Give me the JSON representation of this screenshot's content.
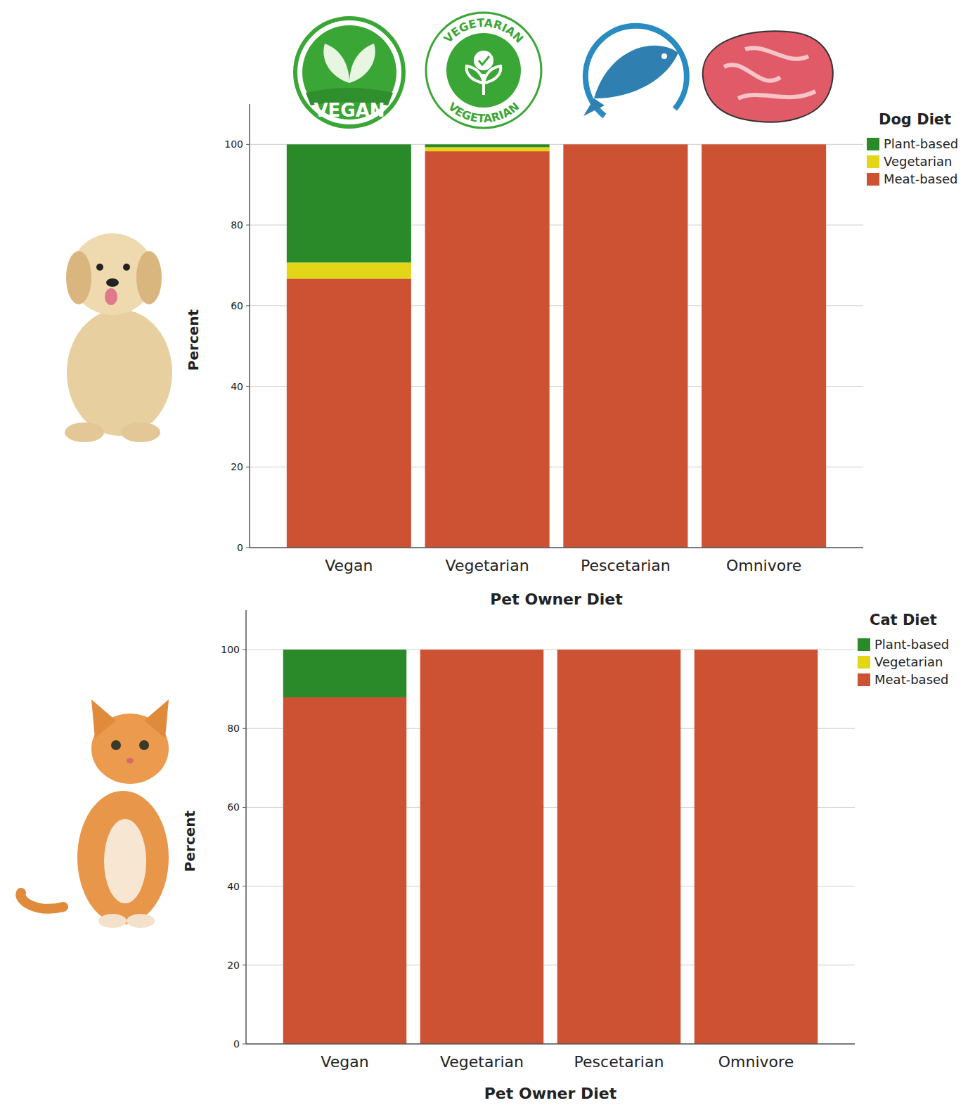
{
  "chart_data": [
    {
      "type": "bar",
      "stacked": true,
      "grid": true,
      "legend": "right",
      "legend_title": "Dog Diet",
      "x_label": "Pet Owner Diet",
      "y_label": "Percent",
      "categories": [
        "Vegan",
        "Vegetarian",
        "Pescetarian",
        "Omnivore"
      ],
      "series": [
        {
          "name": "Plant-based",
          "color": "#2a8a2a",
          "values": [
            29.3,
            0.7,
            0,
            0
          ]
        },
        {
          "name": "Vegetarian",
          "color": "#e3d617",
          "values": [
            4.0,
            1.0,
            0,
            0
          ]
        },
        {
          "name": "Meat-based",
          "color": "#cc5233",
          "values": [
            66.7,
            98.3,
            100,
            100
          ]
        }
      ],
      "ylim": [
        0,
        110
      ],
      "yticks": [
        0,
        20,
        40,
        60,
        80,
        100
      ]
    },
    {
      "type": "bar",
      "stacked": true,
      "grid": true,
      "legend": "right",
      "legend_title": "Cat Diet",
      "x_label": "Pet Owner Diet",
      "y_label": "Percent",
      "categories": [
        "Vegan",
        "Vegetarian",
        "Pescetarian",
        "Omnivore"
      ],
      "series": [
        {
          "name": "Plant-based",
          "color": "#2a8a2a",
          "values": [
            12.1,
            0,
            0,
            0
          ]
        },
        {
          "name": "Vegetarian",
          "color": "#e3d617",
          "values": [
            0,
            0,
            0,
            0
          ]
        },
        {
          "name": "Meat-based",
          "color": "#cc5233",
          "values": [
            87.9,
            100,
            100,
            100
          ]
        }
      ],
      "ylim": [
        0,
        110
      ],
      "yticks": [
        0,
        20,
        40,
        60,
        80,
        100
      ]
    }
  ],
  "icons": {
    "vegan": "VEGAN",
    "vegetarian": "VEGETARIAN"
  }
}
